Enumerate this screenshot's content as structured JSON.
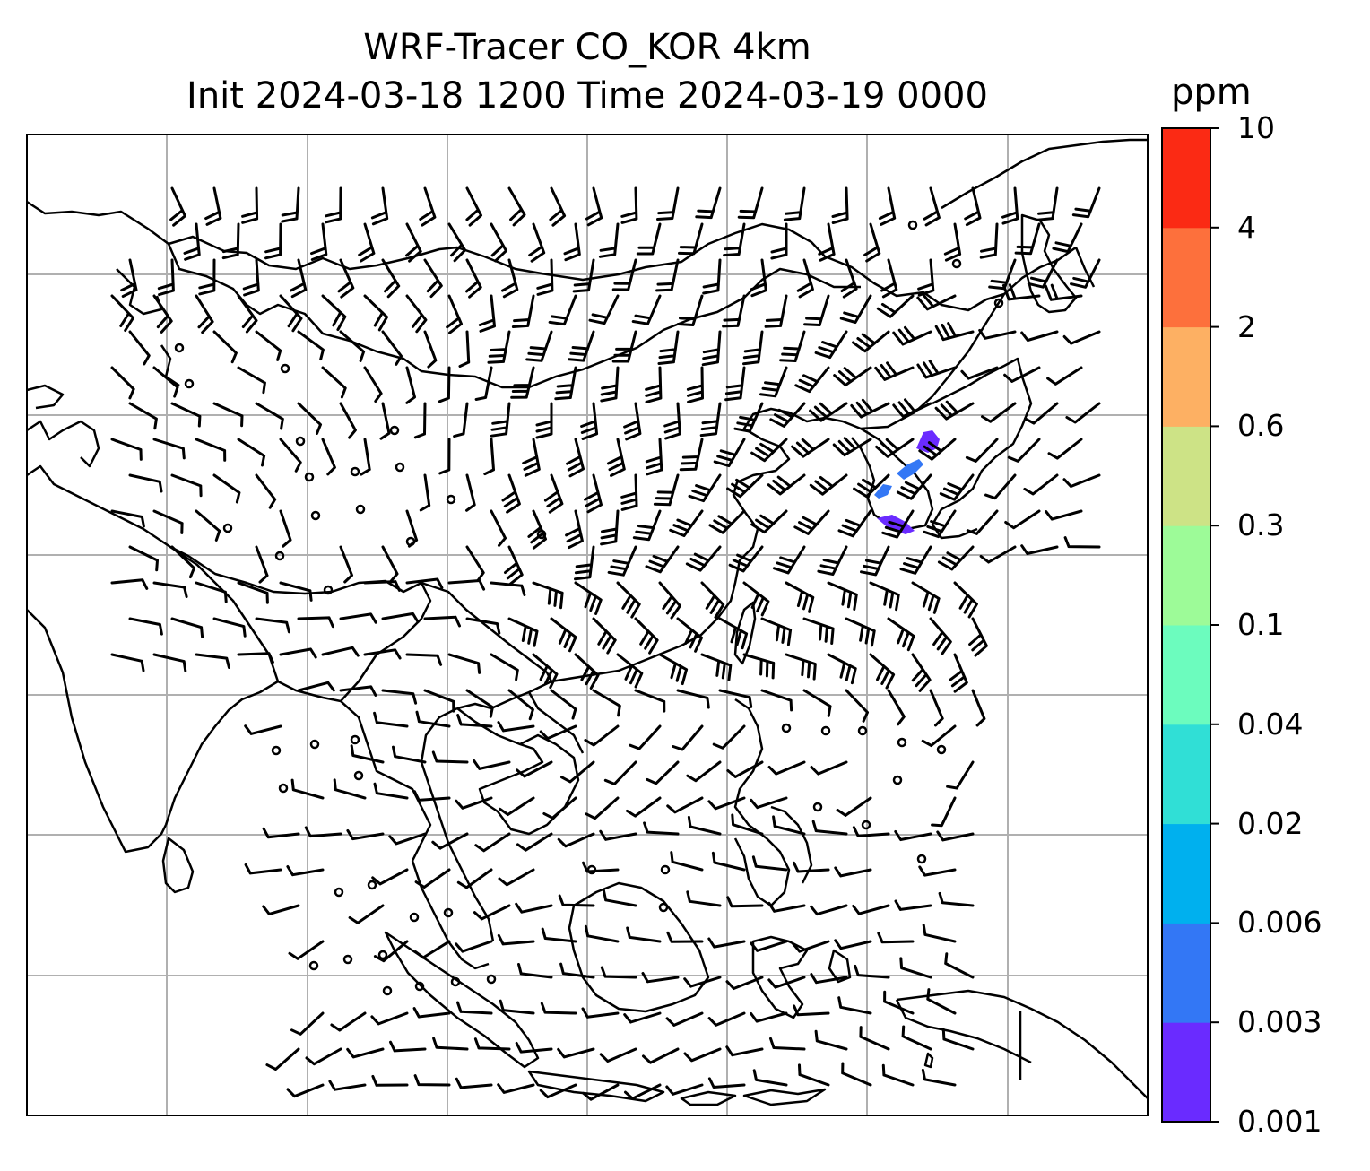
{
  "title": {
    "line1": "WRF-Tracer CO_KOR 4km",
    "line2": "Init 2024-03-18 1200 Time 2024-03-19 0000"
  },
  "colorbar": {
    "unit": "ppm",
    "levels": [
      "0.001",
      "0.003",
      "0.006",
      "0.02",
      "0.04",
      "0.1",
      "0.3",
      "0.6",
      "2",
      "4",
      "10"
    ],
    "colors": [
      "#6a2bff",
      "#3377f5",
      "#00b0ee",
      "#30dfd6",
      "#6cfcbe",
      "#9dfb98",
      "#cde386",
      "#fdb063",
      "#fd703c",
      "#fb2a14"
    ]
  },
  "map": {
    "plume_color": "#6a2bff",
    "plume_core_color": "#3377f5",
    "gridlines": true,
    "wind_barbs": true,
    "coastlines": true
  }
}
